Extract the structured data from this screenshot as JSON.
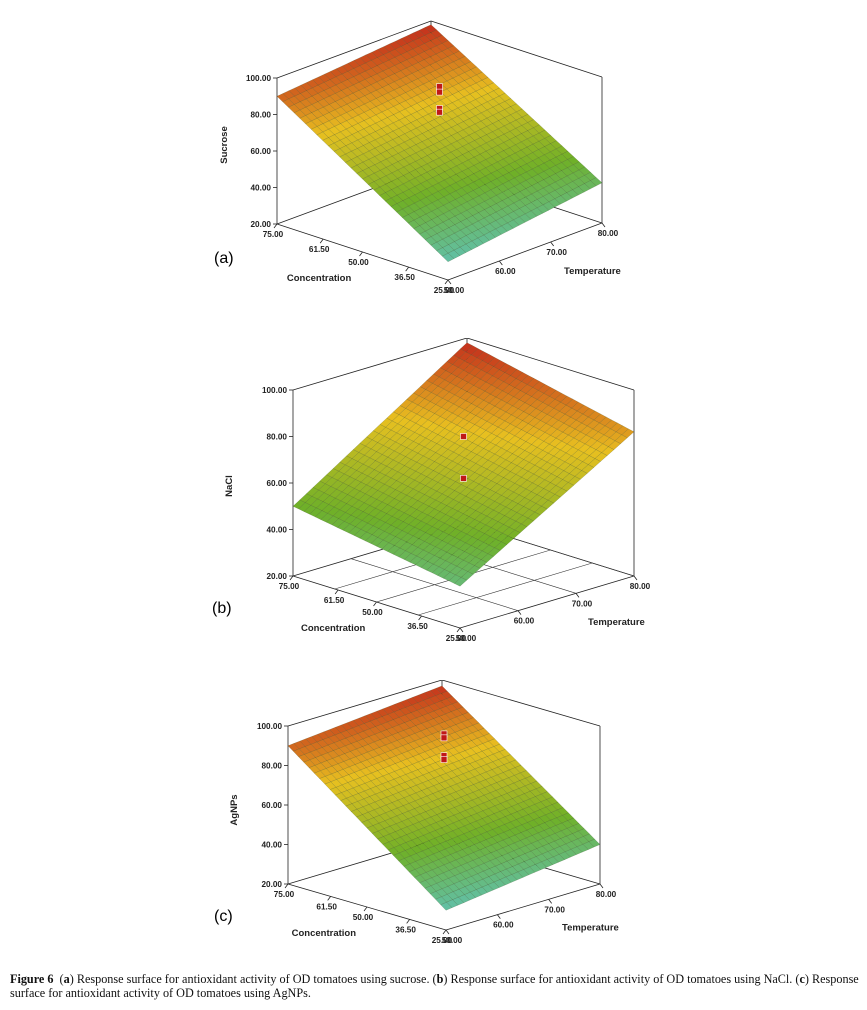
{
  "figure_label": "Figure 6",
  "caption": {
    "a_letter": "a",
    "a_text": "Response surface for antioxidant activity of OD tomatoes using sucrose.",
    "b_letter": "b",
    "b_text": "Response surface for antioxidant activity of OD tomatoes using NaCl.",
    "c_letter": "c",
    "c_text": "Response surface for antioxidant activity of OD tomatoes using AgNPs."
  },
  "colors": {
    "high": "#c0201c",
    "mid_high": "#e8c020",
    "mid": "#6fb028",
    "low": "#5ac8e8",
    "point": "#c01818"
  },
  "chart_data": [
    {
      "panel": "a",
      "panel_label": "(a)",
      "type": "surface",
      "xlabel": "Temperature",
      "ylabel": "Concentration",
      "zlabel": "Sucrose",
      "x_ticks": [
        "50.00",
        "60.00",
        "70.00",
        "80.00"
      ],
      "y_ticks": [
        "25.00",
        "36.50",
        "50.00",
        "61.50",
        "75.00"
      ],
      "z_ticks": [
        "20.00",
        "40.00",
        "60.00",
        "80.00",
        "100.00"
      ],
      "xlim": [
        50,
        80
      ],
      "ylim": [
        25,
        75
      ],
      "zlim": [
        20,
        100
      ],
      "floor_grid": false,
      "corners": {
        "t50_c25": 30,
        "t80_c25": 42,
        "t50_c75": 90,
        "t80_c75": 98
      },
      "design_points": [
        {
          "temperature": 65,
          "concentration": 50,
          "value": 95
        },
        {
          "temperature": 65,
          "concentration": 50,
          "value": 92
        },
        {
          "temperature": 65,
          "concentration": 50,
          "value": 83
        },
        {
          "temperature": 65,
          "concentration": 50,
          "value": 81
        }
      ]
    },
    {
      "panel": "b",
      "panel_label": "(b)",
      "type": "surface",
      "xlabel": "Temperature",
      "ylabel": "Concentration",
      "zlabel": "NaCl",
      "x_ticks": [
        "50.00",
        "60.00",
        "70.00",
        "80.00"
      ],
      "y_ticks": [
        "25.00",
        "36.50",
        "50.00",
        "61.50",
        "75.00"
      ],
      "z_ticks": [
        "20.00",
        "40.00",
        "60.00",
        "80.00",
        "100.00"
      ],
      "xlim": [
        50,
        80
      ],
      "ylim": [
        25,
        75
      ],
      "zlim": [
        20,
        100
      ],
      "floor_grid": true,
      "corners": {
        "t50_c25": 38,
        "t80_c25": 82,
        "t50_c75": 50,
        "t80_c75": 98
      },
      "design_points": [
        {
          "temperature": 65,
          "concentration": 50,
          "value": 80
        },
        {
          "temperature": 65,
          "concentration": 50,
          "value": 62
        }
      ]
    },
    {
      "panel": "c",
      "panel_label": "(c)",
      "type": "surface",
      "xlabel": "Temperature",
      "ylabel": "Concentration",
      "zlabel": "AgNPs",
      "x_ticks": [
        "50.00",
        "60.00",
        "70.00",
        "80.00"
      ],
      "y_ticks": [
        "25.00",
        "36.50",
        "50.00",
        "61.50",
        "75.00"
      ],
      "z_ticks": [
        "20.00",
        "40.00",
        "60.00",
        "80.00",
        "100.00"
      ],
      "xlim": [
        50,
        80
      ],
      "ylim": [
        25,
        75
      ],
      "zlim": [
        20,
        100
      ],
      "floor_grid": false,
      "corners": {
        "t50_c25": 30,
        "t80_c25": 40,
        "t50_c75": 90,
        "t80_c75": 97
      },
      "design_points": [
        {
          "temperature": 65,
          "concentration": 50,
          "value": 96
        },
        {
          "temperature": 65,
          "concentration": 50,
          "value": 94
        },
        {
          "temperature": 65,
          "concentration": 50,
          "value": 85
        },
        {
          "temperature": 65,
          "concentration": 50,
          "value": 83
        }
      ]
    }
  ]
}
